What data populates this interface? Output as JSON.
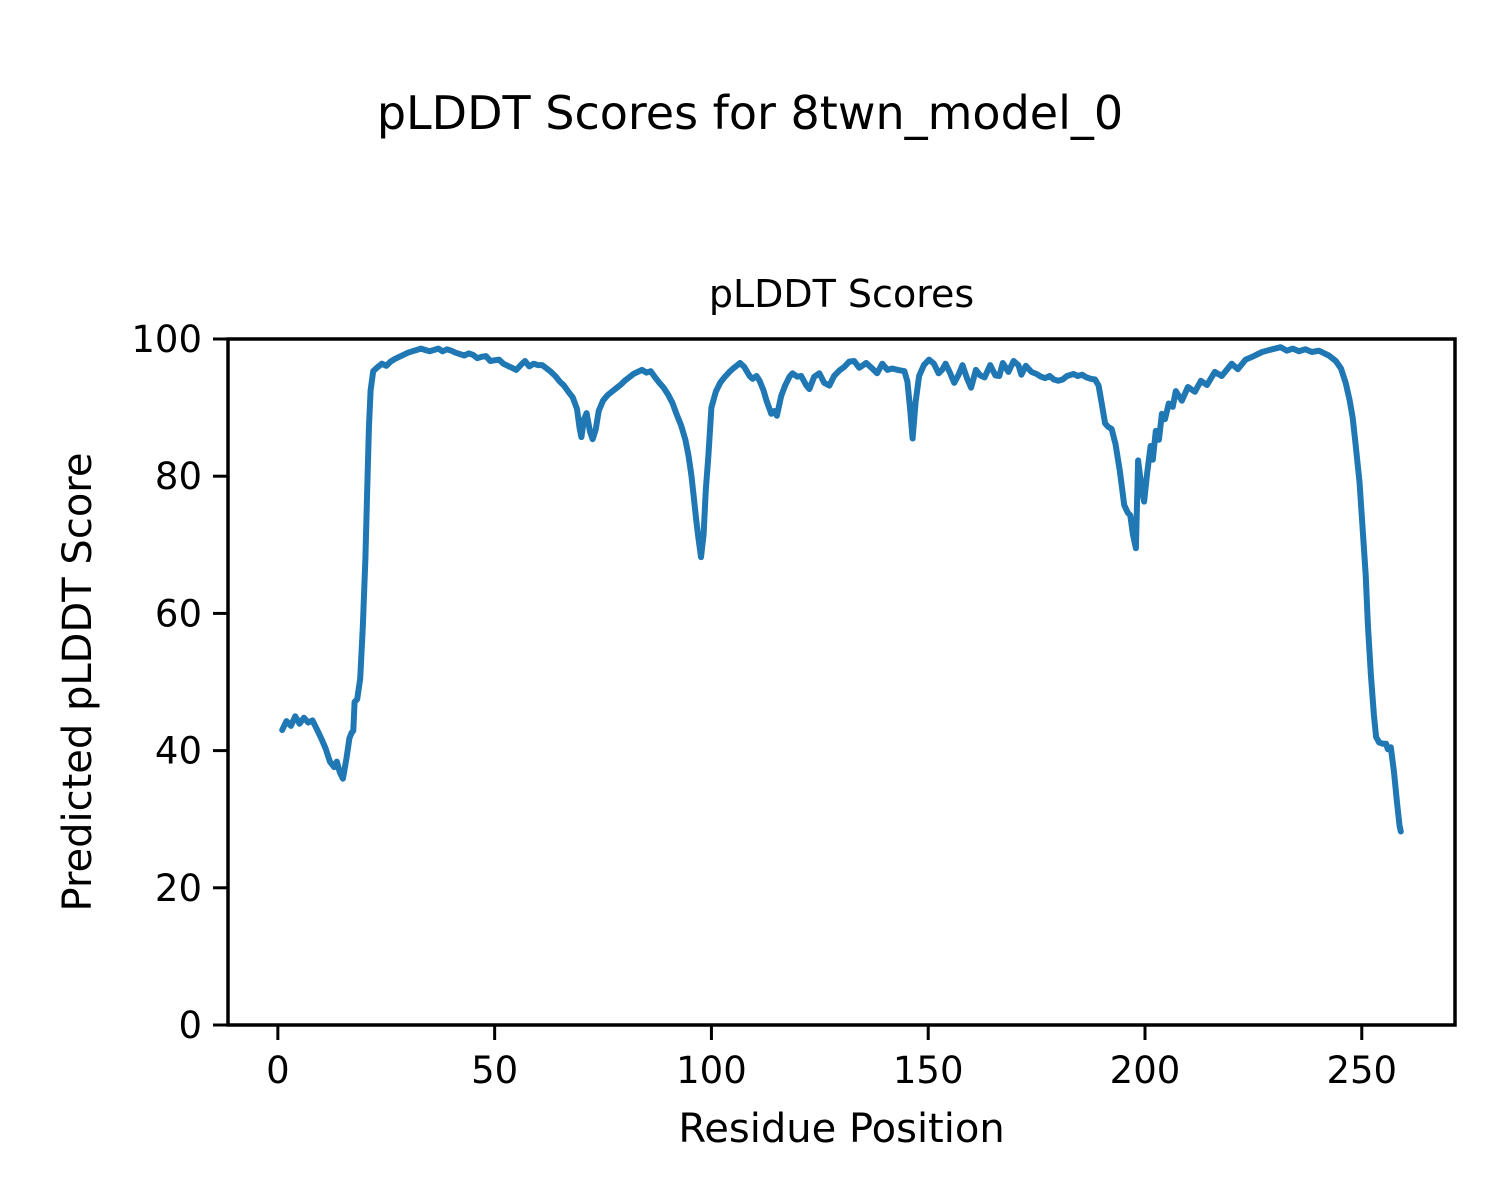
{
  "figure": {
    "suptitle": "pLDDT Scores for 8twn_model_0",
    "background": "#ffffff"
  },
  "chart_data": {
    "type": "line",
    "title": "pLDDT Scores",
    "xlabel": "Residue Position",
    "ylabel": "Predicted pLDDT Score",
    "xlim": [
      -11.5,
      271.5
    ],
    "ylim": [
      0,
      100
    ],
    "xticks": [
      0,
      50,
      100,
      150,
      200,
      250
    ],
    "yticks": [
      0,
      20,
      40,
      60,
      80,
      100
    ],
    "grid": false,
    "legend": "none",
    "line_color": "#1f77b4",
    "line_width": 6,
    "spine_color": "#000000",
    "series": [
      {
        "name": "pLDDT",
        "x": [
          1,
          2,
          3,
          4,
          5,
          6,
          7,
          8,
          9,
          10,
          11,
          12,
          13,
          13.6,
          14.3,
          15,
          15.8,
          16.5,
          17,
          17.4,
          17.7,
          18.3,
          19,
          19.6,
          20.2,
          20.6,
          21,
          21.4,
          22,
          23,
          24,
          25,
          26,
          27,
          28,
          29,
          30,
          31,
          32,
          33,
          34,
          35,
          36,
          37,
          38,
          39,
          40,
          41,
          42,
          43,
          44,
          45,
          46,
          47,
          48,
          49,
          50,
          51,
          52,
          53,
          54,
          55,
          56,
          57,
          58,
          59,
          60,
          61,
          62,
          63,
          64,
          65,
          66,
          67,
          68,
          69,
          69.6,
          70,
          70.6,
          71.2,
          72,
          72.6,
          73.3,
          74,
          75,
          76,
          77,
          78,
          79,
          80,
          81,
          82,
          83,
          84,
          85,
          86,
          87,
          88,
          89,
          90,
          91,
          92,
          93,
          94,
          94.7,
          95.4,
          96,
          96.5,
          97,
          97.6,
          98.2,
          98.7,
          99.3,
          100,
          101,
          102,
          103,
          104,
          105,
          106,
          106.6,
          107.6,
          108.8,
          109.5,
          110.4,
          111.1,
          112,
          112.7,
          113.8,
          114.5,
          115.1,
          116.1,
          117,
          118,
          118.7,
          119.8,
          120.7,
          121.9,
          122.6,
          123.7,
          124.9,
          126,
          127.2,
          128.3,
          129.5,
          130.6,
          131.8,
          132.9,
          134.1,
          135.7,
          137.1,
          138.2,
          139.4,
          140.6,
          141.7,
          143,
          144.5,
          145.2,
          145.8,
          146.4,
          147.1,
          147.9,
          149,
          150.2,
          151.3,
          152.4,
          153.2,
          154,
          155,
          156,
          157,
          157.9,
          159,
          159.9,
          161,
          162,
          163,
          164.3,
          165.5,
          166.4,
          167.2,
          168.5,
          169.7,
          170.8,
          171.5,
          172.5,
          173.8,
          175,
          176,
          177,
          178,
          179,
          180,
          181,
          182,
          183.5,
          184.5,
          185.5,
          186.5,
          187.5,
          188.5,
          189.3,
          190,
          190.8,
          191.5,
          192.3,
          193.2,
          194.2,
          195.2,
          196,
          196.6,
          197.2,
          197.9,
          198.4,
          199.2,
          199.8,
          200.5,
          201.3,
          201.8,
          202.5,
          203.2,
          203.9,
          204.6,
          205.5,
          206.4,
          207.1,
          208.5,
          209.9,
          211.5,
          212.9,
          214.3,
          216.1,
          217.7,
          220,
          221.4,
          223.2,
          225.1,
          227,
          229.3,
          231.3,
          232.7,
          234.1,
          235.5,
          237,
          238.5,
          240.1,
          242.4,
          244,
          245.2,
          246.3,
          247.2,
          247.9,
          248.6,
          249.5,
          250.2,
          250.9,
          251.4,
          252.1,
          252.8,
          253.3,
          254,
          254.8,
          255.6,
          256,
          256.7,
          257.4,
          258.1,
          258.7,
          259
        ],
        "y": [
          43,
          44.3,
          43.6,
          45,
          43.9,
          44.8,
          44.1,
          44.4,
          43.1,
          41.8,
          40.3,
          38.4,
          37.6,
          38.4,
          36.8,
          35.9,
          38.8,
          41.8,
          42.6,
          42.9,
          47.1,
          47.5,
          50.5,
          58,
          68,
          78,
          87,
          92.5,
          95.3,
          95.9,
          96.4,
          96.1,
          96.7,
          97.1,
          97.4,
          97.7,
          98,
          98.2,
          98.4,
          98.6,
          98.4,
          98.2,
          98.4,
          98.6,
          98.2,
          98.5,
          98.3,
          98,
          97.8,
          97.6,
          97.9,
          97.7,
          97.2,
          97.4,
          97.5,
          96.8,
          96.9,
          97,
          96.4,
          96.1,
          95.8,
          95.5,
          96.2,
          96.8,
          96,
          96.4,
          96.2,
          96.2,
          95.7,
          95.2,
          94.6,
          93.8,
          93.2,
          92.3,
          91.5,
          89.8,
          87,
          85.7,
          88.3,
          89.2,
          86.5,
          85.4,
          86.8,
          89.5,
          91,
          91.8,
          92.3,
          92.8,
          93.3,
          93.9,
          94.4,
          94.9,
          95.2,
          95.5,
          95.1,
          95.3,
          94.4,
          93.6,
          92.9,
          91.9,
          90.7,
          89,
          87.4,
          85.3,
          83,
          80,
          76.5,
          73.5,
          71,
          68.2,
          71.5,
          78,
          83,
          90,
          92.3,
          93.6,
          94.4,
          95.1,
          95.7,
          96.2,
          96.5,
          95.9,
          94.6,
          94.2,
          94.6,
          93.9,
          92.5,
          91,
          89.1,
          89.5,
          88.8,
          91.7,
          93.2,
          94.5,
          95,
          94.5,
          94.6,
          93.2,
          92.7,
          94.5,
          95,
          93.6,
          93.2,
          94.6,
          95.4,
          95.9,
          96.7,
          96.8,
          95.8,
          96.5,
          95.7,
          95,
          96.4,
          95.5,
          95.7,
          95.5,
          95.3,
          93.8,
          90,
          85.5,
          90.8,
          94.6,
          96.2,
          97,
          96.4,
          95,
          95.5,
          96.4,
          95.1,
          93.6,
          94.8,
          96.2,
          94.2,
          92.9,
          95.5,
          94.7,
          94.4,
          96.2,
          94.7,
          94.6,
          96.5,
          95.2,
          96.8,
          96.2,
          94.8,
          96.1,
          95.2,
          94.9,
          94.5,
          94.3,
          94.6,
          94.1,
          93.9,
          94.1,
          94.6,
          94.9,
          94.6,
          94.8,
          94.4,
          94.2,
          94.1,
          93.2,
          90.7,
          87.7,
          87.2,
          86.9,
          84.7,
          80.7,
          75.8,
          74.7,
          74.3,
          71.5,
          69.5,
          82.3,
          78.4,
          76.3,
          80.5,
          84.4,
          82.4,
          86.6,
          85.3,
          89.1,
          88.3,
          90.6,
          90.1,
          92.4,
          91,
          93,
          92.3,
          93.9,
          93.3,
          95.2,
          94.6,
          96.4,
          95.6,
          97,
          97.5,
          98.1,
          98.5,
          98.8,
          98.3,
          98.6,
          98.2,
          98.5,
          98.1,
          98.3,
          97.6,
          96.8,
          95.7,
          93.6,
          91.1,
          88.5,
          84.5,
          79,
          72.4,
          65.6,
          58.3,
          51,
          45.2,
          42,
          41.2,
          41,
          41,
          40.2,
          40.5,
          37,
          32.6,
          29.1,
          28.2
        ]
      }
    ]
  }
}
